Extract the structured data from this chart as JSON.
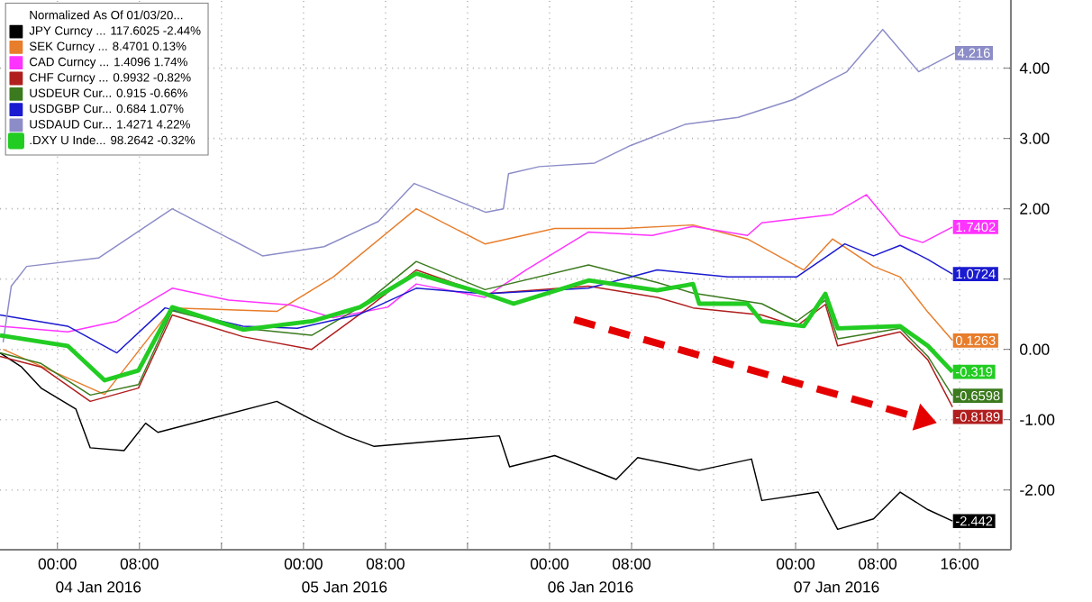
{
  "chart_data": {
    "type": "line",
    "legend_title": "Normalized As Of 01/03/20...",
    "legend": "top left",
    "grid": true,
    "xlim": [
      "2016-01-03T18:24",
      "2016-01-07T21:00"
    ],
    "ylim": [
      -2.85,
      4.97
    ],
    "xticks": [
      {
        "value": "2016-01-04T00:00",
        "label": "00:00"
      },
      {
        "value": "2016-01-04T08:00",
        "label": "08:00"
      },
      {
        "value": "2016-01-04T16:00",
        "label": null
      },
      {
        "value": "2016-01-05T00:00",
        "label": "00:00"
      },
      {
        "value": "2016-01-05T08:00",
        "label": "08:00"
      },
      {
        "value": "2016-01-05T16:00",
        "label": null
      },
      {
        "value": "2016-01-06T00:00",
        "label": "00:00"
      },
      {
        "value": "2016-01-06T08:00",
        "label": "08:00"
      },
      {
        "value": "2016-01-06T16:00",
        "label": null
      },
      {
        "value": "2016-01-07T00:00",
        "label": "00:00"
      },
      {
        "value": "2016-01-07T08:00",
        "label": "08:00"
      },
      {
        "value": "2016-01-07T16:00",
        "label": "16:00"
      }
    ],
    "annotations": [
      "04 Jan 2016",
      "05 Jan 2016",
      "06 Jan 2016",
      "07 Jan 2016"
    ],
    "yticks": [
      {
        "value": 4,
        "label": "4.00"
      },
      {
        "value": 3,
        "label": "3.00"
      },
      {
        "value": 2,
        "label": "2.00"
      },
      {
        "value": 1,
        "label": null
      },
      {
        "value": 0,
        "label": "0.00"
      },
      {
        "value": -1,
        "label": "-1.00"
      },
      {
        "value": -2,
        "label": "-2.00"
      }
    ],
    "series": [
      {
        "name": "JPY Curncy ...   117.6025   -2.44%",
        "color": "#000000",
        "x": [
          "2016-01-03T18:24",
          "2016-01-03T20:30",
          "2016-01-03T22:24",
          "2016-01-04T01:48",
          "2016-01-04T03:12",
          "2016-01-04T06:30",
          "2016-01-04T08:36",
          "2016-01-04T09:48",
          "2016-01-04T21:24",
          "2016-01-05T00:48",
          "2016-01-05T04:06",
          "2016-01-05T06:54",
          "2016-01-05T19:06",
          "2016-01-05T20:06",
          "2016-01-06T00:30",
          "2016-01-06T06:30",
          "2016-01-06T08:36",
          "2016-01-06T14:36",
          "2016-01-06T19:42",
          "2016-01-06T20:42",
          "2016-01-07T02:12",
          "2016-01-07T04:06",
          "2016-01-07T07:36",
          "2016-01-07T10:12",
          "2016-01-07T12:54",
          "2016-01-07T15:18"
        ],
        "values": [
          -0.05,
          -0.25,
          -0.55,
          -0.85,
          -1.4,
          -1.44,
          -1.05,
          -1.18,
          -0.74,
          -1.0,
          -1.23,
          -1.38,
          -1.23,
          -1.67,
          -1.51,
          -1.85,
          -1.54,
          -1.72,
          -1.56,
          -2.15,
          -2.03,
          -2.56,
          -2.41,
          -2.03,
          -2.28,
          -2.442
        ],
        "value_labels": [
          null,
          null,
          null,
          null,
          null,
          null,
          null,
          null,
          null,
          null,
          null,
          null,
          null,
          null,
          null,
          null,
          null,
          null,
          null,
          null,
          null,
          null,
          null,
          null,
          null,
          "-2.442"
        ]
      },
      {
        "name": "SEK Curncy ...   8.4701   0.13%",
        "color": "#e87d2b",
        "x": [
          "2016-01-03T18:42",
          "2016-01-04T04:36",
          "2016-01-04T11:12",
          "2016-01-04T21:24",
          "2016-01-05T02:54",
          "2016-01-05T11:00",
          "2016-01-05T17:42",
          "2016-01-06T00:30",
          "2016-01-06T07:12",
          "2016-01-06T14:00",
          "2016-01-06T19:18",
          "2016-01-07T00:48",
          "2016-01-07T03:36",
          "2016-01-07T07:36",
          "2016-01-07T10:12",
          "2016-01-07T12:54",
          "2016-01-07T15:18"
        ],
        "values": [
          0.0,
          -0.64,
          0.59,
          0.54,
          1.03,
          2.0,
          1.5,
          1.72,
          1.72,
          1.77,
          1.57,
          1.13,
          1.57,
          1.18,
          1.03,
          0.53,
          0.1263
        ],
        "value_labels": [
          null,
          null,
          null,
          null,
          null,
          null,
          null,
          null,
          null,
          null,
          null,
          null,
          null,
          null,
          null,
          null,
          "0.1263"
        ]
      },
      {
        "name": "CAD Curncy ...   1.4096   1.74%",
        "color": "#ff33ff",
        "x": [
          "2016-01-03T18:24",
          "2016-01-04T01:00",
          "2016-01-04T05:48",
          "2016-01-04T11:12",
          "2016-01-04T16:42",
          "2016-01-04T22:48",
          "2016-01-05T02:54",
          "2016-01-05T08:12",
          "2016-01-05T11:00",
          "2016-01-05T17:42",
          "2016-01-05T21:42",
          "2016-01-06T03:48",
          "2016-01-06T10:00",
          "2016-01-06T14:00",
          "2016-01-06T19:18",
          "2016-01-06T20:42",
          "2016-01-07T03:36",
          "2016-01-07T06:54",
          "2016-01-07T10:12",
          "2016-01-07T12:24",
          "2016-01-07T15:18"
        ],
        "values": [
          0.33,
          0.25,
          0.4,
          0.87,
          0.7,
          0.63,
          0.45,
          0.6,
          0.93,
          0.74,
          1.13,
          1.67,
          1.62,
          1.75,
          1.62,
          1.8,
          1.92,
          2.2,
          1.62,
          1.52,
          1.7402
        ],
        "value_labels": [
          null,
          null,
          null,
          null,
          null,
          null,
          null,
          null,
          null,
          null,
          null,
          null,
          null,
          null,
          null,
          null,
          null,
          null,
          null,
          null,
          "1.7402"
        ]
      },
      {
        "name": "CHF Curncy ...   0.9932   -0.82%",
        "color": "#b01e1e",
        "x": [
          "2016-01-03T18:24",
          "2016-01-03T22:24",
          "2016-01-04T03:12",
          "2016-01-04T07:54",
          "2016-01-04T11:12",
          "2016-01-04T18:06",
          "2016-01-05T00:48",
          "2016-01-05T05:30",
          "2016-01-05T11:00",
          "2016-01-05T17:42",
          "2016-01-06T03:48",
          "2016-01-06T10:30",
          "2016-01-06T14:00",
          "2016-01-06T20:42",
          "2016-01-07T00:06",
          "2016-01-07T02:54",
          "2016-01-07T04:06",
          "2016-01-07T10:12",
          "2016-01-07T12:54",
          "2016-01-07T15:18"
        ],
        "values": [
          -0.1,
          -0.25,
          -0.74,
          -0.55,
          0.49,
          0.18,
          0.0,
          0.5,
          1.13,
          0.79,
          0.9,
          0.74,
          0.59,
          0.49,
          0.33,
          0.64,
          0.05,
          0.25,
          -0.15,
          -0.8189
        ],
        "value_labels": [
          null,
          null,
          null,
          null,
          null,
          null,
          null,
          null,
          null,
          null,
          null,
          null,
          null,
          null,
          null,
          null,
          null,
          null,
          null,
          "-0.8189"
        ]
      },
      {
        "name": "USDEUR Cur...   0.915   -0.66%",
        "color": "#3b7a1e",
        "x": [
          "2016-01-03T18:24",
          "2016-01-03T22:24",
          "2016-01-04T03:12",
          "2016-01-04T07:54",
          "2016-01-04T11:12",
          "2016-01-04T18:06",
          "2016-01-05T00:48",
          "2016-01-05T05:30",
          "2016-01-05T11:00",
          "2016-01-05T17:42",
          "2016-01-06T03:48",
          "2016-01-06T10:30",
          "2016-01-06T14:00",
          "2016-01-06T20:42",
          "2016-01-07T00:06",
          "2016-01-07T02:54",
          "2016-01-07T04:06",
          "2016-01-07T10:12",
          "2016-01-07T12:54",
          "2016-01-07T15:18"
        ],
        "values": [
          -0.05,
          -0.2,
          -0.65,
          -0.5,
          0.55,
          0.3,
          0.2,
          0.6,
          1.25,
          0.85,
          1.2,
          0.95,
          0.8,
          0.65,
          0.4,
          0.7,
          0.15,
          0.3,
          -0.1,
          -0.6598
        ],
        "value_labels": [
          null,
          null,
          null,
          null,
          null,
          null,
          null,
          null,
          null,
          null,
          null,
          null,
          null,
          null,
          null,
          null,
          null,
          null,
          null,
          "-0.6598"
        ]
      },
      {
        "name": "USDGBP Cur...   0.684   1.07%",
        "color": "#1a1ad0",
        "x": [
          "2016-01-03T18:24",
          "2016-01-04T01:00",
          "2016-01-04T05:48",
          "2016-01-04T10:30",
          "2016-01-04T18:06",
          "2016-01-04T23:24",
          "2016-01-05T05:30",
          "2016-01-05T11:00",
          "2016-01-05T17:42",
          "2016-01-06T03:48",
          "2016-01-06T10:30",
          "2016-01-06T17:24",
          "2016-01-07T00:06",
          "2016-01-07T03:36",
          "2016-01-07T04:48",
          "2016-01-07T07:36",
          "2016-01-07T10:12",
          "2016-01-07T12:54",
          "2016-01-07T15:18"
        ],
        "values": [
          0.49,
          0.33,
          -0.05,
          0.59,
          0.33,
          0.3,
          0.5,
          0.87,
          0.79,
          0.87,
          1.13,
          1.03,
          1.03,
          1.38,
          1.5,
          1.33,
          1.48,
          1.28,
          1.0724
        ],
        "value_labels": [
          null,
          null,
          null,
          null,
          null,
          null,
          null,
          null,
          null,
          null,
          null,
          null,
          null,
          null,
          null,
          null,
          null,
          null,
          "1.0724"
        ]
      },
      {
        "name": "USDAUD Cur...   1.4271   4.22%",
        "color": "#8c8cc8",
        "x": [
          "2016-01-03T18:42",
          "2016-01-03T19:30",
          "2016-01-03T21:00",
          "2016-01-04T04:00",
          "2016-01-04T11:12",
          "2016-01-04T20:00",
          "2016-01-05T02:00",
          "2016-01-05T07:18",
          "2016-01-05T10:48",
          "2016-01-05T17:48",
          "2016-01-05T19:30",
          "2016-01-05T20:00",
          "2016-01-05T23:00",
          "2016-01-06T04:24",
          "2016-01-06T07:54",
          "2016-01-06T13:12",
          "2016-01-06T18:24",
          "2016-01-06T23:42",
          "2016-01-07T05:00",
          "2016-01-07T08:30",
          "2016-01-07T12:00",
          "2016-01-07T15:30"
        ],
        "values": [
          0.1,
          0.9,
          1.18,
          1.3,
          2.0,
          1.33,
          1.46,
          1.82,
          2.36,
          1.95,
          2.0,
          2.5,
          2.6,
          2.65,
          2.9,
          3.2,
          3.3,
          3.55,
          3.95,
          4.55,
          3.95,
          4.216
        ],
        "value_labels": [
          null,
          null,
          null,
          null,
          null,
          null,
          null,
          null,
          null,
          null,
          null,
          null,
          null,
          null,
          null,
          null,
          null,
          null,
          null,
          null,
          null,
          "4.216"
        ]
      },
      {
        "name": ".DXY U Inde...   98.2642   -0.32%",
        "color": "#22cc22",
        "x": [
          "2016-01-03T18:24",
          "2016-01-04T01:00",
          "2016-01-04T04:36",
          "2016-01-04T07:54",
          "2016-01-04T11:12",
          "2016-01-04T18:06",
          "2016-01-05T00:48",
          "2016-01-05T05:30",
          "2016-01-05T11:00",
          "2016-01-05T17:42",
          "2016-01-05T20:30",
          "2016-01-06T03:48",
          "2016-01-06T10:30",
          "2016-01-06T14:00",
          "2016-01-06T14:36",
          "2016-01-06T19:18",
          "2016-01-06T20:42",
          "2016-01-07T00:48",
          "2016-01-07T02:54",
          "2016-01-07T04:06",
          "2016-01-07T10:12",
          "2016-01-07T12:54",
          "2016-01-07T15:18"
        ],
        "values": [
          0.2,
          0.05,
          -0.44,
          -0.3,
          0.6,
          0.28,
          0.4,
          0.6,
          1.08,
          0.79,
          0.65,
          0.98,
          0.84,
          0.93,
          0.65,
          0.65,
          0.4,
          0.33,
          0.79,
          0.3,
          0.33,
          0.05,
          -0.319
        ],
        "value_labels": [
          null,
          null,
          null,
          null,
          null,
          null,
          null,
          null,
          null,
          null,
          null,
          null,
          null,
          null,
          null,
          null,
          null,
          null,
          null,
          null,
          null,
          null,
          "-0.319"
        ]
      }
    ]
  }
}
